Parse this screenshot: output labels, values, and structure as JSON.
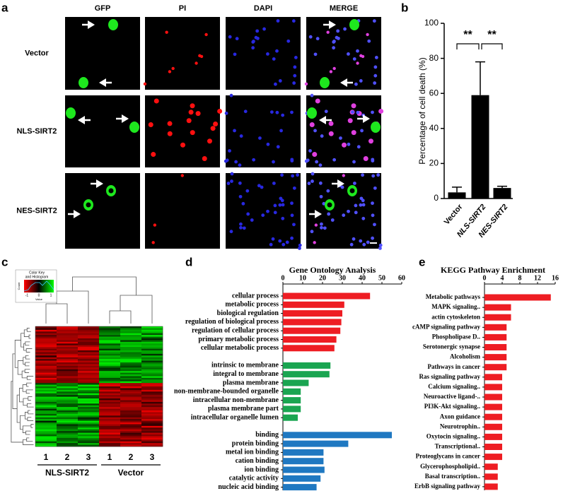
{
  "labels": [
    "a",
    "b",
    "c",
    "d",
    "e"
  ],
  "microscopy": {
    "columns": [
      "GFP",
      "PI",
      "DAPI",
      "MERGE"
    ],
    "rows": [
      "Vector",
      "NLS-SIRT2",
      "NES-SIRT2"
    ]
  },
  "heatmap": {
    "key_title": [
      "Color Key",
      "and Histogram"
    ],
    "key_xlabel": "Value",
    "key_ylabel": "Count",
    "key_ticks": [
      "-1",
      "0",
      "1"
    ],
    "columns": [
      "1",
      "2",
      "3",
      "1",
      "2",
      "3"
    ],
    "groups": [
      "NLS-SIRT2",
      "Vector"
    ]
  },
  "chart_data": [
    {
      "type": "bar",
      "ylabel": "Percentage of cell death (%)",
      "categories": [
        "Vector",
        "NLS-SIRT2",
        "NES-SIRT2"
      ],
      "values": [
        3.5,
        59,
        6
      ],
      "errors": [
        3,
        19,
        1
      ],
      "color": "#000000",
      "ylim": [
        0,
        100
      ],
      "yticks": [
        0,
        20,
        40,
        60,
        80,
        100
      ],
      "annotations": [
        "**",
        "**"
      ]
    },
    {
      "type": "hbar",
      "title": "Gene Ontology Analysis",
      "xlim": [
        0,
        60
      ],
      "xticks": [
        0,
        10,
        20,
        30,
        40,
        50,
        60
      ],
      "groups": [
        {
          "color": "#ee1d23",
          "categories": [
            "cellular process",
            "metabolic process",
            "biological regulation",
            "regulation of biological process",
            "regulation of cellular process",
            "primary metabolic process",
            "cellular metabolic process"
          ],
          "values": [
            44,
            31,
            30,
            29.5,
            29,
            27,
            26
          ]
        },
        {
          "color": "#1aa551",
          "categories": [
            "intrinsic to membrane",
            "integral to membrane",
            "plasma membrane",
            "non-membrane-bounded organelle",
            "intracellular non-membrane",
            "plasma membrane part",
            "intracellular organelle lumen"
          ],
          "values": [
            24,
            23.5,
            13,
            9,
            9,
            9,
            7.5
          ]
        },
        {
          "color": "#1f78c1",
          "categories": [
            "binding",
            "protein binding",
            "metal ion binding",
            "cation binding",
            "ion binding",
            "catalytic activity",
            "nucleic acid binding"
          ],
          "values": [
            55,
            33,
            20.5,
            20.5,
            21,
            19,
            17
          ]
        }
      ]
    },
    {
      "type": "hbar",
      "title": "KEGG Pathway Enrichment",
      "xlim": [
        0,
        16
      ],
      "xticks": [
        0,
        4,
        8,
        12,
        16
      ],
      "color": "#ee1d23",
      "categories": [
        "Metabolic pathways",
        "MAPK signaling..",
        "actin cytoskeleton",
        "cAMP signaling pathway",
        "Phospholipase D..",
        "Serotonergic synapse",
        "Alcoholism",
        "Pathways in cancer",
        "Ras signaling pathway",
        "Calcium signaling..",
        "Neuroactive ligand-..",
        "PI3K-Akt signaling..",
        "Axon guidance",
        "Neurotrophin..",
        "Oxytocin signaling..",
        "Transcriptional..",
        "Proteoglycans in cancer",
        "Glycerophospholipid..",
        "Basal transcription..",
        "ErbB signaling pathway"
      ],
      "values": [
        15,
        6,
        6,
        5,
        5,
        5,
        5,
        5,
        4,
        4,
        4,
        4,
        4,
        4,
        4,
        4,
        4,
        3,
        3,
        3
      ]
    }
  ]
}
